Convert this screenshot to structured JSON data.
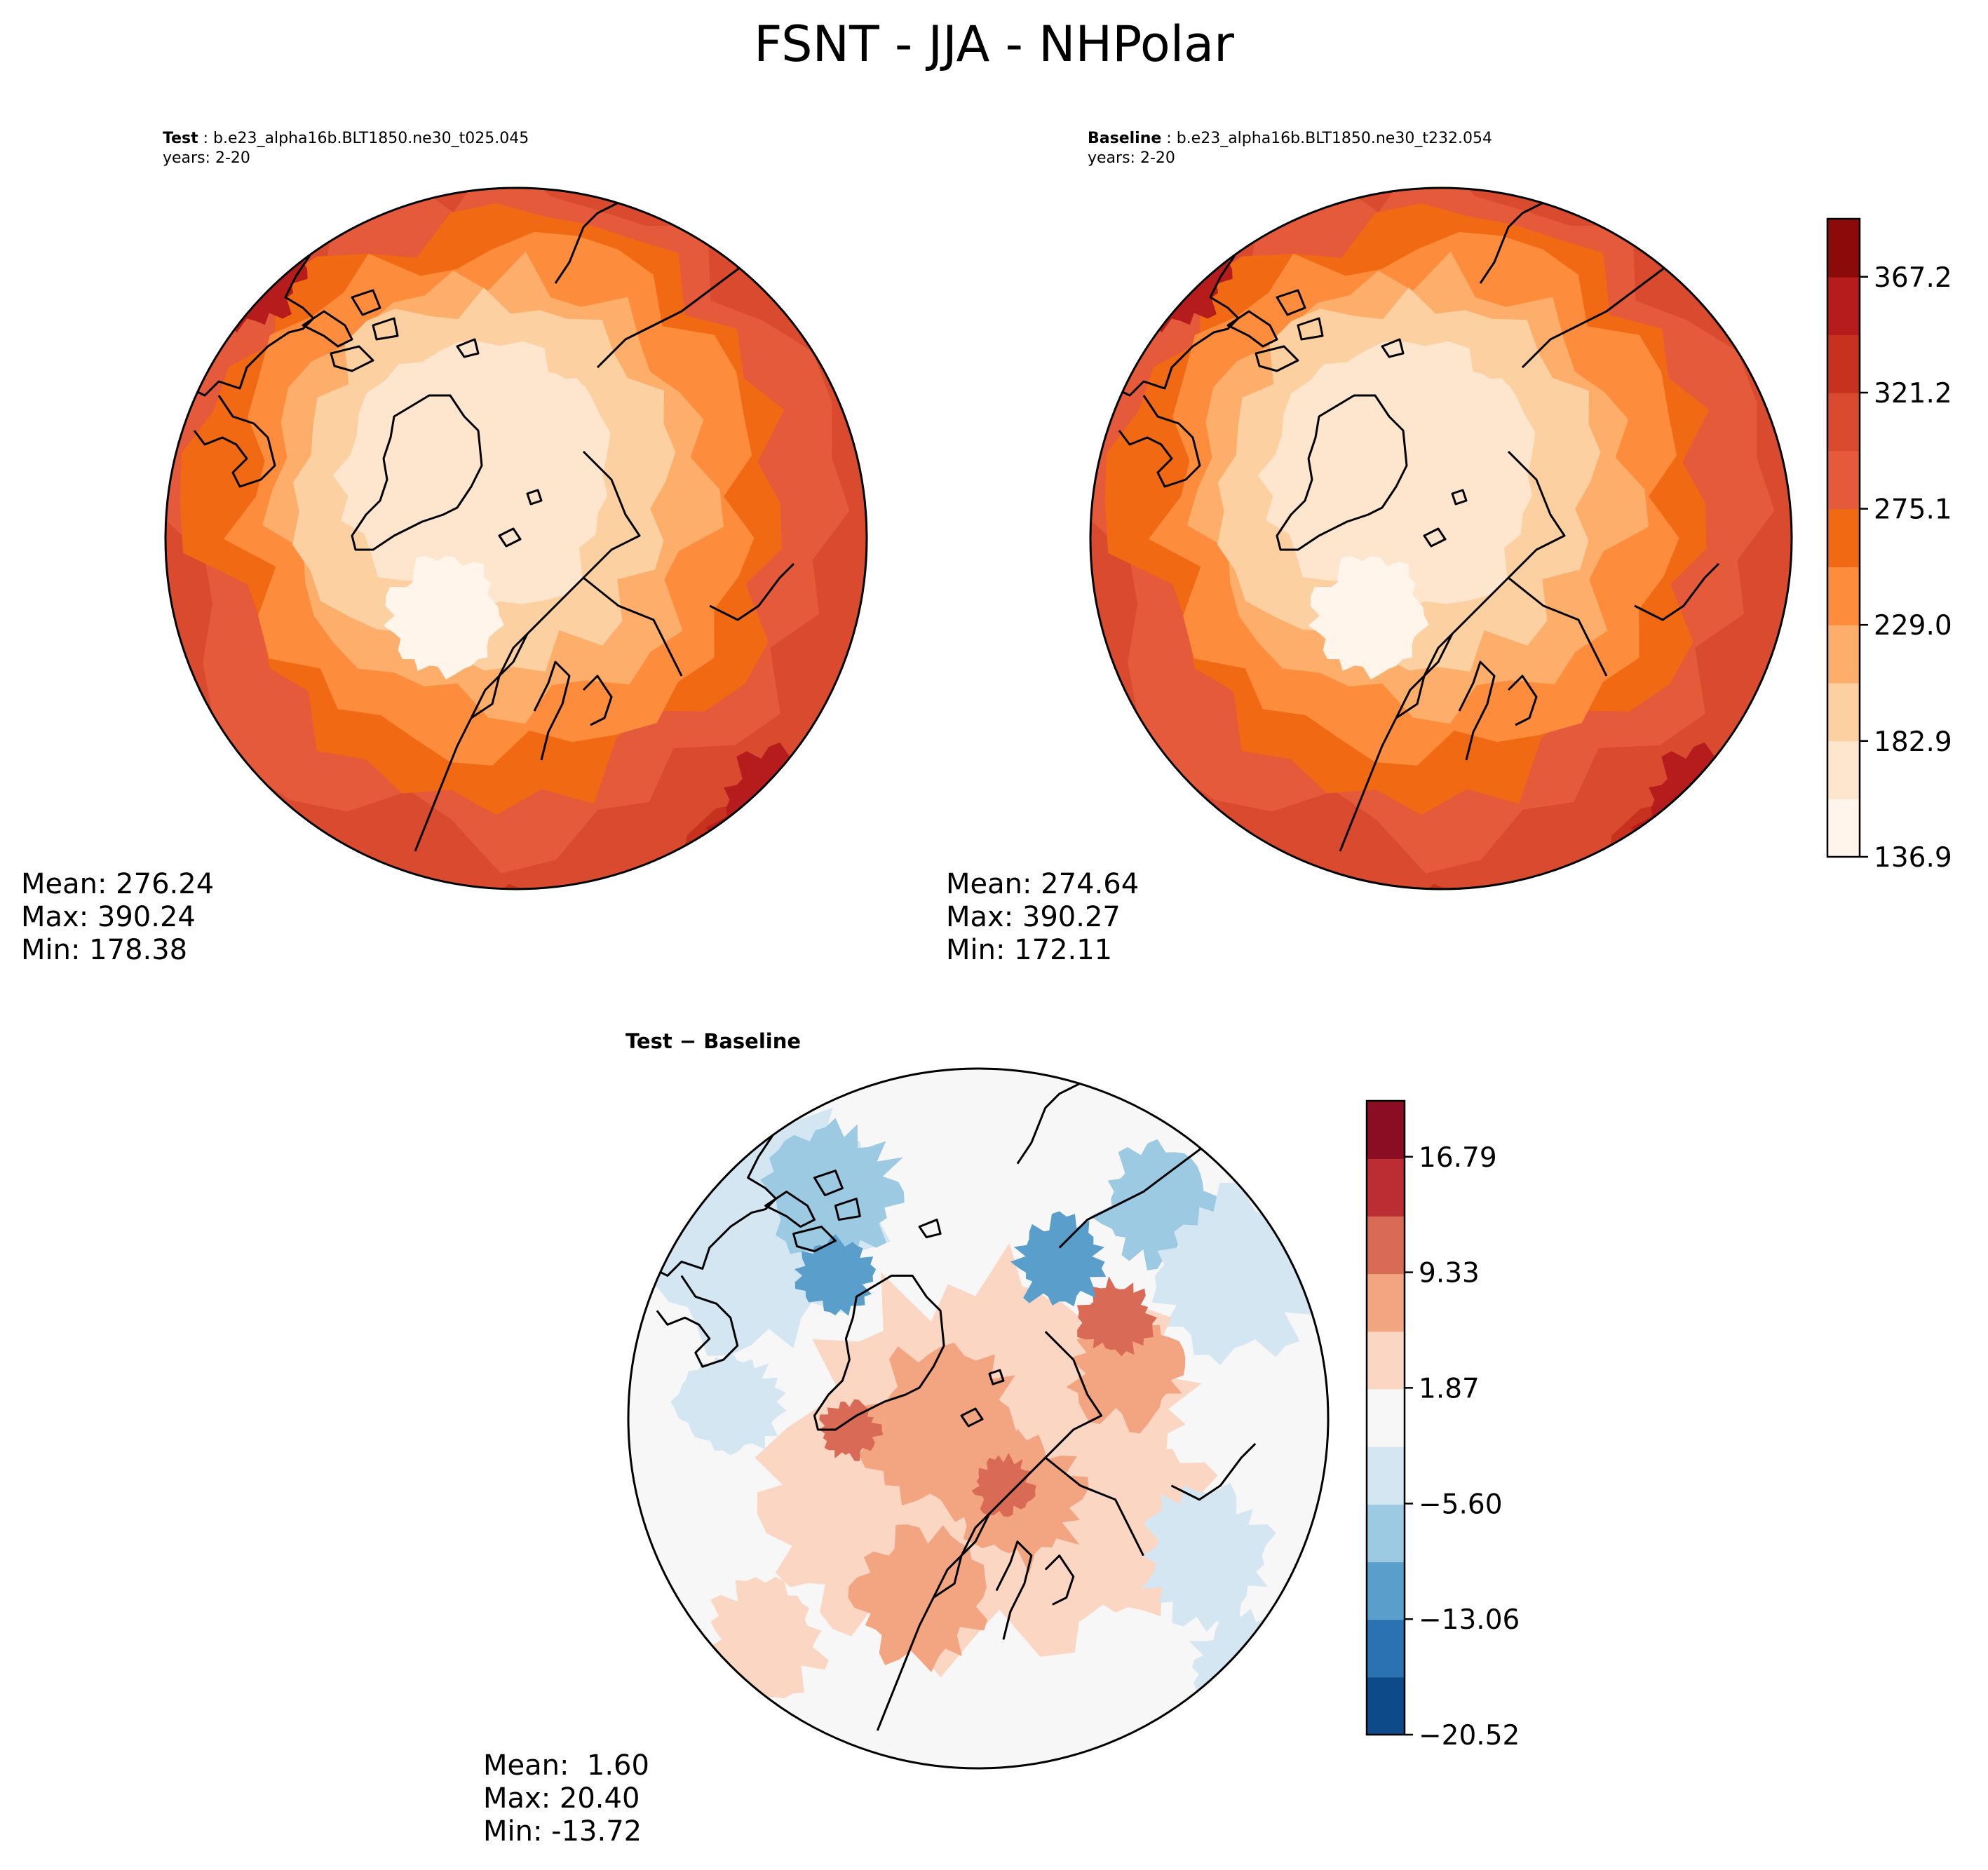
{
  "title": "FSNT - JJA - NHPolar",
  "panels": {
    "test": {
      "label": "Test",
      "run": "b.e23_alpha16b.BLT1850.ne30_t025.045",
      "years": "years: 2-20",
      "stats": {
        "mean": "Mean: 276.24",
        "max": "Max: 390.24",
        "min": "Min: 178.38"
      }
    },
    "baseline": {
      "label": "Baseline",
      "run": "b.e23_alpha16b.BLT1850.ne30_t232.054",
      "years": "years: 2-20",
      "stats": {
        "mean": "Mean: 274.64",
        "max": "Max: 390.27",
        "min": "Min: 172.11"
      }
    },
    "diff": {
      "title": "Test − Baseline",
      "stats": {
        "mean": "Mean:  1.60",
        "max": "Max: 20.40",
        "min": "Min: -13.72"
      }
    }
  },
  "chart_data": [
    {
      "type": "heatmap",
      "name": "Test",
      "projection": "North Polar Stereographic",
      "variable": "FSNT",
      "season": "JJA",
      "mean": 276.24,
      "max": 390.24,
      "min": 178.38
    },
    {
      "type": "heatmap",
      "name": "Baseline",
      "projection": "North Polar Stereographic",
      "variable": "FSNT",
      "season": "JJA",
      "mean": 274.64,
      "max": 390.27,
      "min": 172.11
    },
    {
      "type": "heatmap",
      "name": "Test - Baseline",
      "projection": "North Polar Stereographic",
      "variable": "FSNT difference",
      "season": "JJA",
      "mean": 1.6,
      "max": 20.4,
      "min": -13.72
    }
  ],
  "colorbars": {
    "main": {
      "range": [
        136.9,
        390.24
      ],
      "tick_values": [
        136.9,
        182.9,
        229.0,
        275.1,
        321.2,
        367.2
      ],
      "tick_labels": [
        "136.9",
        "182.9",
        "229.0",
        "275.1",
        "321.2",
        "367.2"
      ],
      "colors": [
        "#fff5eb",
        "#fee6ce",
        "#fdd0a2",
        "#fdae6b",
        "#fd8d3c",
        "#f16913",
        "#e55a3a",
        "#d94a2f",
        "#c7321f",
        "#b71c1c",
        "#8b0a0a"
      ]
    },
    "diff": {
      "range": [
        -20.52,
        20.4
      ],
      "tick_values": [
        -20.52,
        -13.06,
        -5.6,
        1.87,
        9.33,
        16.79
      ],
      "tick_labels": [
        "−20.52",
        "−13.06",
        "−5.60",
        "1.87",
        "9.33",
        "16.79"
      ],
      "colors": [
        "#0d4a8a",
        "#2b72b3",
        "#5a9fcb",
        "#9ccae3",
        "#d3e6f1",
        "#f7f7f7",
        "#fbd6c3",
        "#f3a582",
        "#d96a56",
        "#bb2d32",
        "#8a0d23"
      ]
    }
  }
}
